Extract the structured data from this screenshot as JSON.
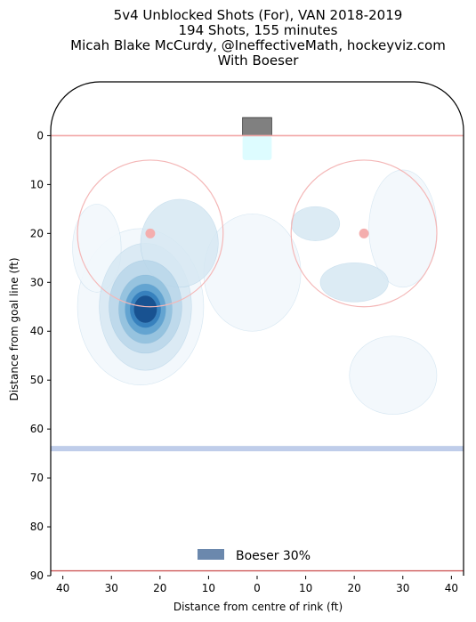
{
  "chart_data": {
    "type": "heatmap",
    "title_lines": [
      "5v4 Unblocked Shots (For), VAN 2018-2019",
      "194 Shots, 155 minutes",
      "Micah Blake McCurdy, @IneffectiveMath, hockeyviz.com",
      "With Boeser"
    ],
    "xlabel": "Distance from centre of rink (ft)",
    "ylabel": "Distance from goal line (ft)",
    "xlim": [
      -42.5,
      42.5
    ],
    "ylim": [
      -11,
      90
    ],
    "x_ticks": [
      {
        "value": -40,
        "label": "40"
      },
      {
        "value": -30,
        "label": "30"
      },
      {
        "value": -20,
        "label": "20"
      },
      {
        "value": -10,
        "label": "10"
      },
      {
        "value": 0,
        "label": "0"
      },
      {
        "value": 10,
        "label": "10"
      },
      {
        "value": 20,
        "label": "20"
      },
      {
        "value": 30,
        "label": "30"
      },
      {
        "value": 40,
        "label": "40"
      }
    ],
    "y_ticks": [
      0,
      10,
      20,
      30,
      40,
      50,
      60,
      70,
      80,
      90
    ],
    "legend": {
      "label": "Boeser 30%",
      "color": "#6b88ad",
      "placement": "bottom-center"
    },
    "rink": {
      "goal_line_y": 0,
      "blue_line_y": 64,
      "faceoff_circles": [
        {
          "x": -22,
          "y": 20,
          "r": 15
        },
        {
          "x": 22,
          "y": 20,
          "r": 15
        }
      ],
      "faceoff_dot_radius": 1,
      "colors": {
        "goal_line": "#f2a6a6",
        "blue_line": "#b8c8e8",
        "circle": "#f4b7b7",
        "dot": "#f4aeae",
        "net": "#808080",
        "crease": "#d9fcff",
        "boards": "#000000"
      }
    },
    "density_levels": [
      {
        "level": 1,
        "color": "#f2f7fc"
      },
      {
        "level": 2,
        "color": "#d6e7f2"
      },
      {
        "level": 3,
        "color": "#b9d6e9"
      },
      {
        "level": 4,
        "color": "#8fbedd"
      },
      {
        "level": 5,
        "color": "#5b9fcf"
      },
      {
        "level": 6,
        "color": "#2f7bbb"
      },
      {
        "level": 7,
        "color": "#134a8a"
      }
    ],
    "hotspots": [
      {
        "x": -24,
        "y": 35,
        "rx": 13,
        "ry": 16,
        "level": 1
      },
      {
        "x": -23,
        "y": 35,
        "rx": 9.5,
        "ry": 13,
        "level": 2
      },
      {
        "x": -23,
        "y": 35,
        "rx": 7.5,
        "ry": 9.5,
        "level": 3
      },
      {
        "x": -23,
        "y": 35.5,
        "rx": 5.5,
        "ry": 7,
        "level": 4
      },
      {
        "x": -23,
        "y": 35.5,
        "rx": 4.2,
        "ry": 5.2,
        "level": 5
      },
      {
        "x": -23,
        "y": 35.5,
        "rx": 3.2,
        "ry": 3.8,
        "level": 6
      },
      {
        "x": -23,
        "y": 35.5,
        "rx": 2.4,
        "ry": 2.8,
        "level": 7
      },
      {
        "x": -16,
        "y": 22,
        "rx": 8,
        "ry": 9,
        "level": 2
      },
      {
        "x": -1,
        "y": 28,
        "rx": 10,
        "ry": 12,
        "level": 1
      },
      {
        "x": 12,
        "y": 18,
        "rx": 5,
        "ry": 3.5,
        "level": 2
      },
      {
        "x": 20,
        "y": 30,
        "rx": 7,
        "ry": 4,
        "level": 2
      },
      {
        "x": 28,
        "y": 49,
        "rx": 9,
        "ry": 8,
        "level": 1
      },
      {
        "x": -33,
        "y": 23,
        "rx": 5,
        "ry": 9,
        "level": 1
      },
      {
        "x": 30,
        "y": 19,
        "rx": 7,
        "ry": 12,
        "level": 1
      }
    ]
  }
}
